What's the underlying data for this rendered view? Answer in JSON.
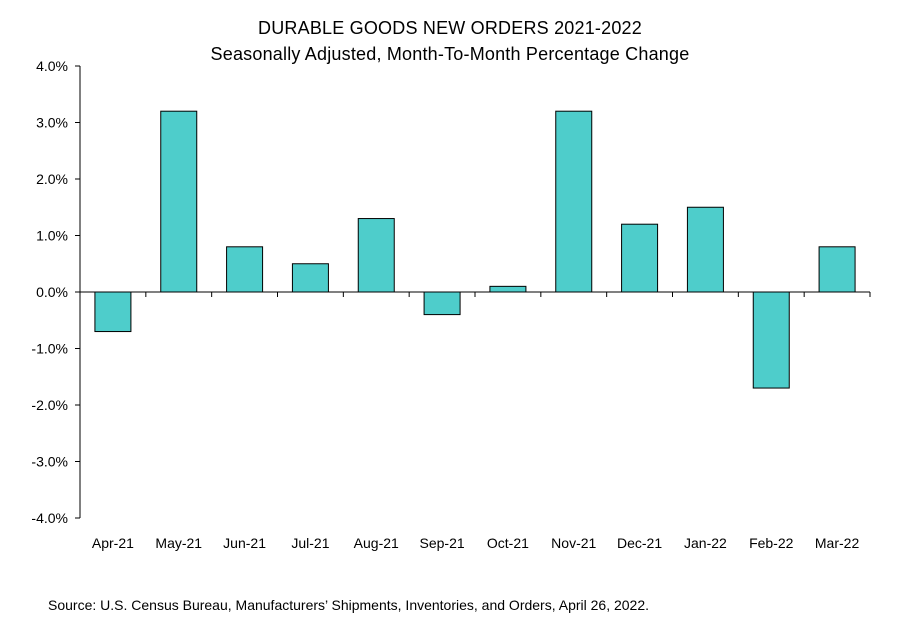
{
  "chart_data": {
    "type": "bar",
    "title": "DURABLE GOODS NEW ORDERS 2021-2022",
    "subtitle": "Seasonally Adjusted,  Month-To-Month Percentage Change",
    "xlabel": "",
    "ylabel": "",
    "categories": [
      "Apr-21",
      "May-21",
      "Jun-21",
      "Jul-21",
      "Aug-21",
      "Sep-21",
      "Oct-21",
      "Nov-21",
      "Dec-21",
      "Jan-22",
      "Feb-22",
      "Mar-22"
    ],
    "values": [
      -0.7,
      3.2,
      0.8,
      0.5,
      1.3,
      -0.4,
      0.1,
      3.2,
      1.2,
      1.5,
      -1.7,
      0.8
    ],
    "ylim": [
      -4.0,
      4.0
    ],
    "yticks": [
      -4.0,
      -3.0,
      -2.0,
      -1.0,
      0.0,
      1.0,
      2.0,
      3.0,
      4.0
    ],
    "ytick_labels": [
      "-4.0%",
      "-3.0%",
      "-2.0%",
      "-1.0%",
      "0.0%",
      "1.0%",
      "2.0%",
      "3.0%",
      "4.0%"
    ],
    "bar_color": "#4ECDCB",
    "bar_edge_color": "#000000",
    "grid": false,
    "legend": "none"
  },
  "source_note": "Source: U.S. Census Bureau, Manufacturers’ Shipments, Inventories, and Orders, April 26, 2022."
}
